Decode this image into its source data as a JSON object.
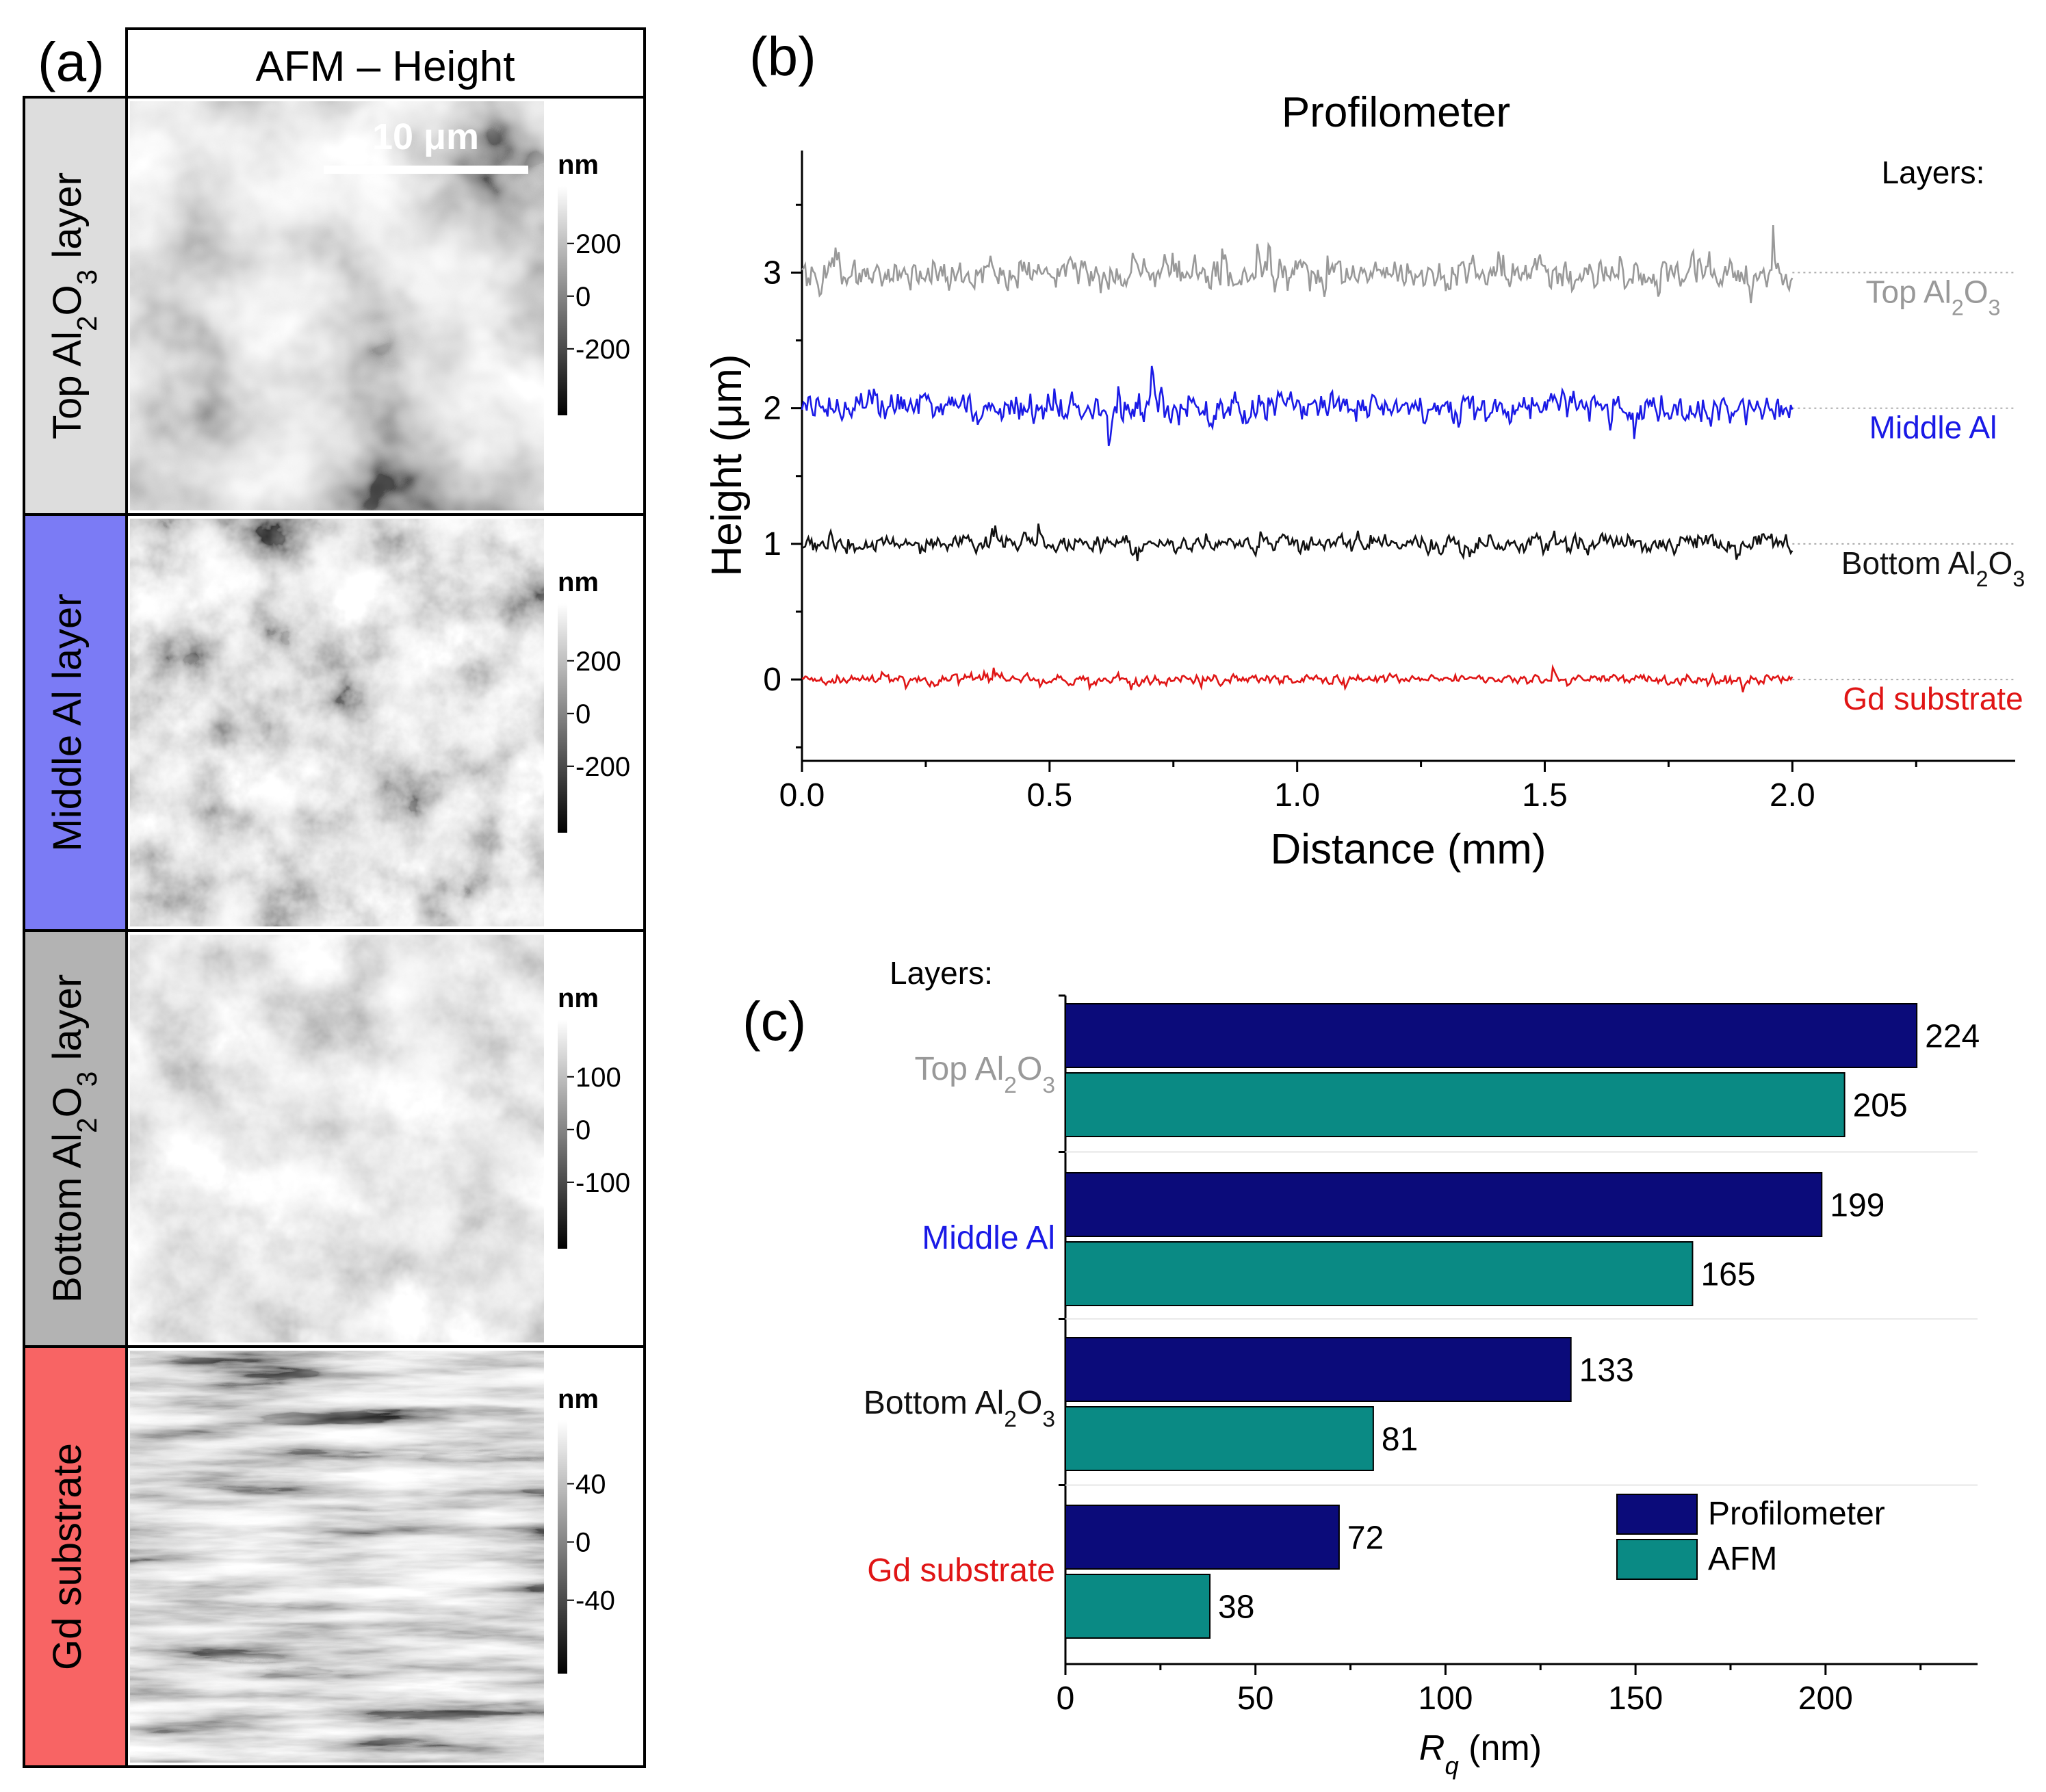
{
  "panel_a": {
    "label": "(a)",
    "header": "AFM – Height",
    "scale_bar": "10 μm",
    "rows": [
      {
        "layer_label": "Top Al2O3 layer",
        "parts": [
          "Top Al",
          "2",
          "O",
          "3",
          " layer"
        ],
        "color_label": "#dddddd",
        "unit": "nm",
        "ticks": [
          "200",
          "0",
          "-200"
        ]
      },
      {
        "layer_label": "Middle Al layer",
        "parts": [
          "Middle Al layer"
        ],
        "color_label": "#7b7bf5",
        "unit": "nm",
        "ticks": [
          "200",
          "0",
          "-200"
        ]
      },
      {
        "layer_label": "Bottom Al2O3 layer",
        "parts": [
          "Bottom Al",
          "2",
          "O",
          "3",
          " layer"
        ],
        "color_label": "#b3b3b3",
        "unit": "nm",
        "ticks": [
          "100",
          "0",
          "-100"
        ]
      },
      {
        "layer_label": "Gd substrate",
        "parts": [
          "Gd substrate"
        ],
        "color_label": "#f86464",
        "unit": "nm",
        "ticks": [
          "40",
          "0",
          "-40"
        ]
      }
    ]
  },
  "panel_b": {
    "label": "(b)",
    "legend_header": "Layers:",
    "layer_names": [
      {
        "parts": [
          "Top Al",
          "2",
          "O",
          "3"
        ],
        "color": "#999999"
      },
      {
        "parts": [
          "Middle Al"
        ],
        "color": "#1a1ae6"
      },
      {
        "parts": [
          "Bottom Al",
          "2",
          "O",
          "3"
        ],
        "color": "#111111"
      },
      {
        "parts": [
          "Gd substrate"
        ],
        "color": "#e01515"
      }
    ]
  },
  "panel_c": {
    "label": "(c)",
    "legend_header": "Layers:"
  },
  "chart_data": [
    {
      "type": "line",
      "title": "Profilometer",
      "xlabel": "Distance (mm)",
      "ylabel": "Height (μm)",
      "xlim": [
        0.0,
        2.45
      ],
      "ylim": [
        -0.6,
        3.9
      ],
      "x_ticks": [
        "0.0",
        "0.5",
        "1.0",
        "1.5",
        "2.0"
      ],
      "y_ticks": [
        "0",
        "1",
        "2",
        "3"
      ],
      "x_range": [
        0.0,
        2.0
      ],
      "series": [
        {
          "name": "Top Al2O3",
          "baseline": 3,
          "color": "#999999",
          "amplitude_um": 0.3
        },
        {
          "name": "Middle Al",
          "baseline": 2,
          "color": "#1a1ae6",
          "amplitude_um": 0.27
        },
        {
          "name": "Bottom Al2O3",
          "baseline": 1,
          "color": "#111111",
          "amplitude_um": 0.17
        },
        {
          "name": "Gd substrate",
          "baseline": 0,
          "color": "#e01515",
          "amplitude_um": 0.09
        }
      ]
    },
    {
      "type": "bar",
      "orientation": "horizontal",
      "categories": [
        "Top Al2O3",
        "Middle Al",
        "Bottom Al2O3",
        "Gd substrate"
      ],
      "category_colors": [
        "#999999",
        "#1a1ae6",
        "#111111",
        "#e01515"
      ],
      "series": [
        {
          "name": "Profilometer",
          "color": "#0b0b7a",
          "values": [
            224,
            199,
            133,
            72
          ]
        },
        {
          "name": "AFM",
          "color": "#0a8a84",
          "values": [
            205,
            165,
            81,
            38
          ]
        }
      ],
      "xlim": [
        0,
        240
      ],
      "x_ticks": [
        "0",
        "50",
        "100",
        "150",
        "200"
      ],
      "xlabel_symbol": "R",
      "xlabel_sub": "q",
      "xlabel_unit": " (nm)"
    }
  ]
}
